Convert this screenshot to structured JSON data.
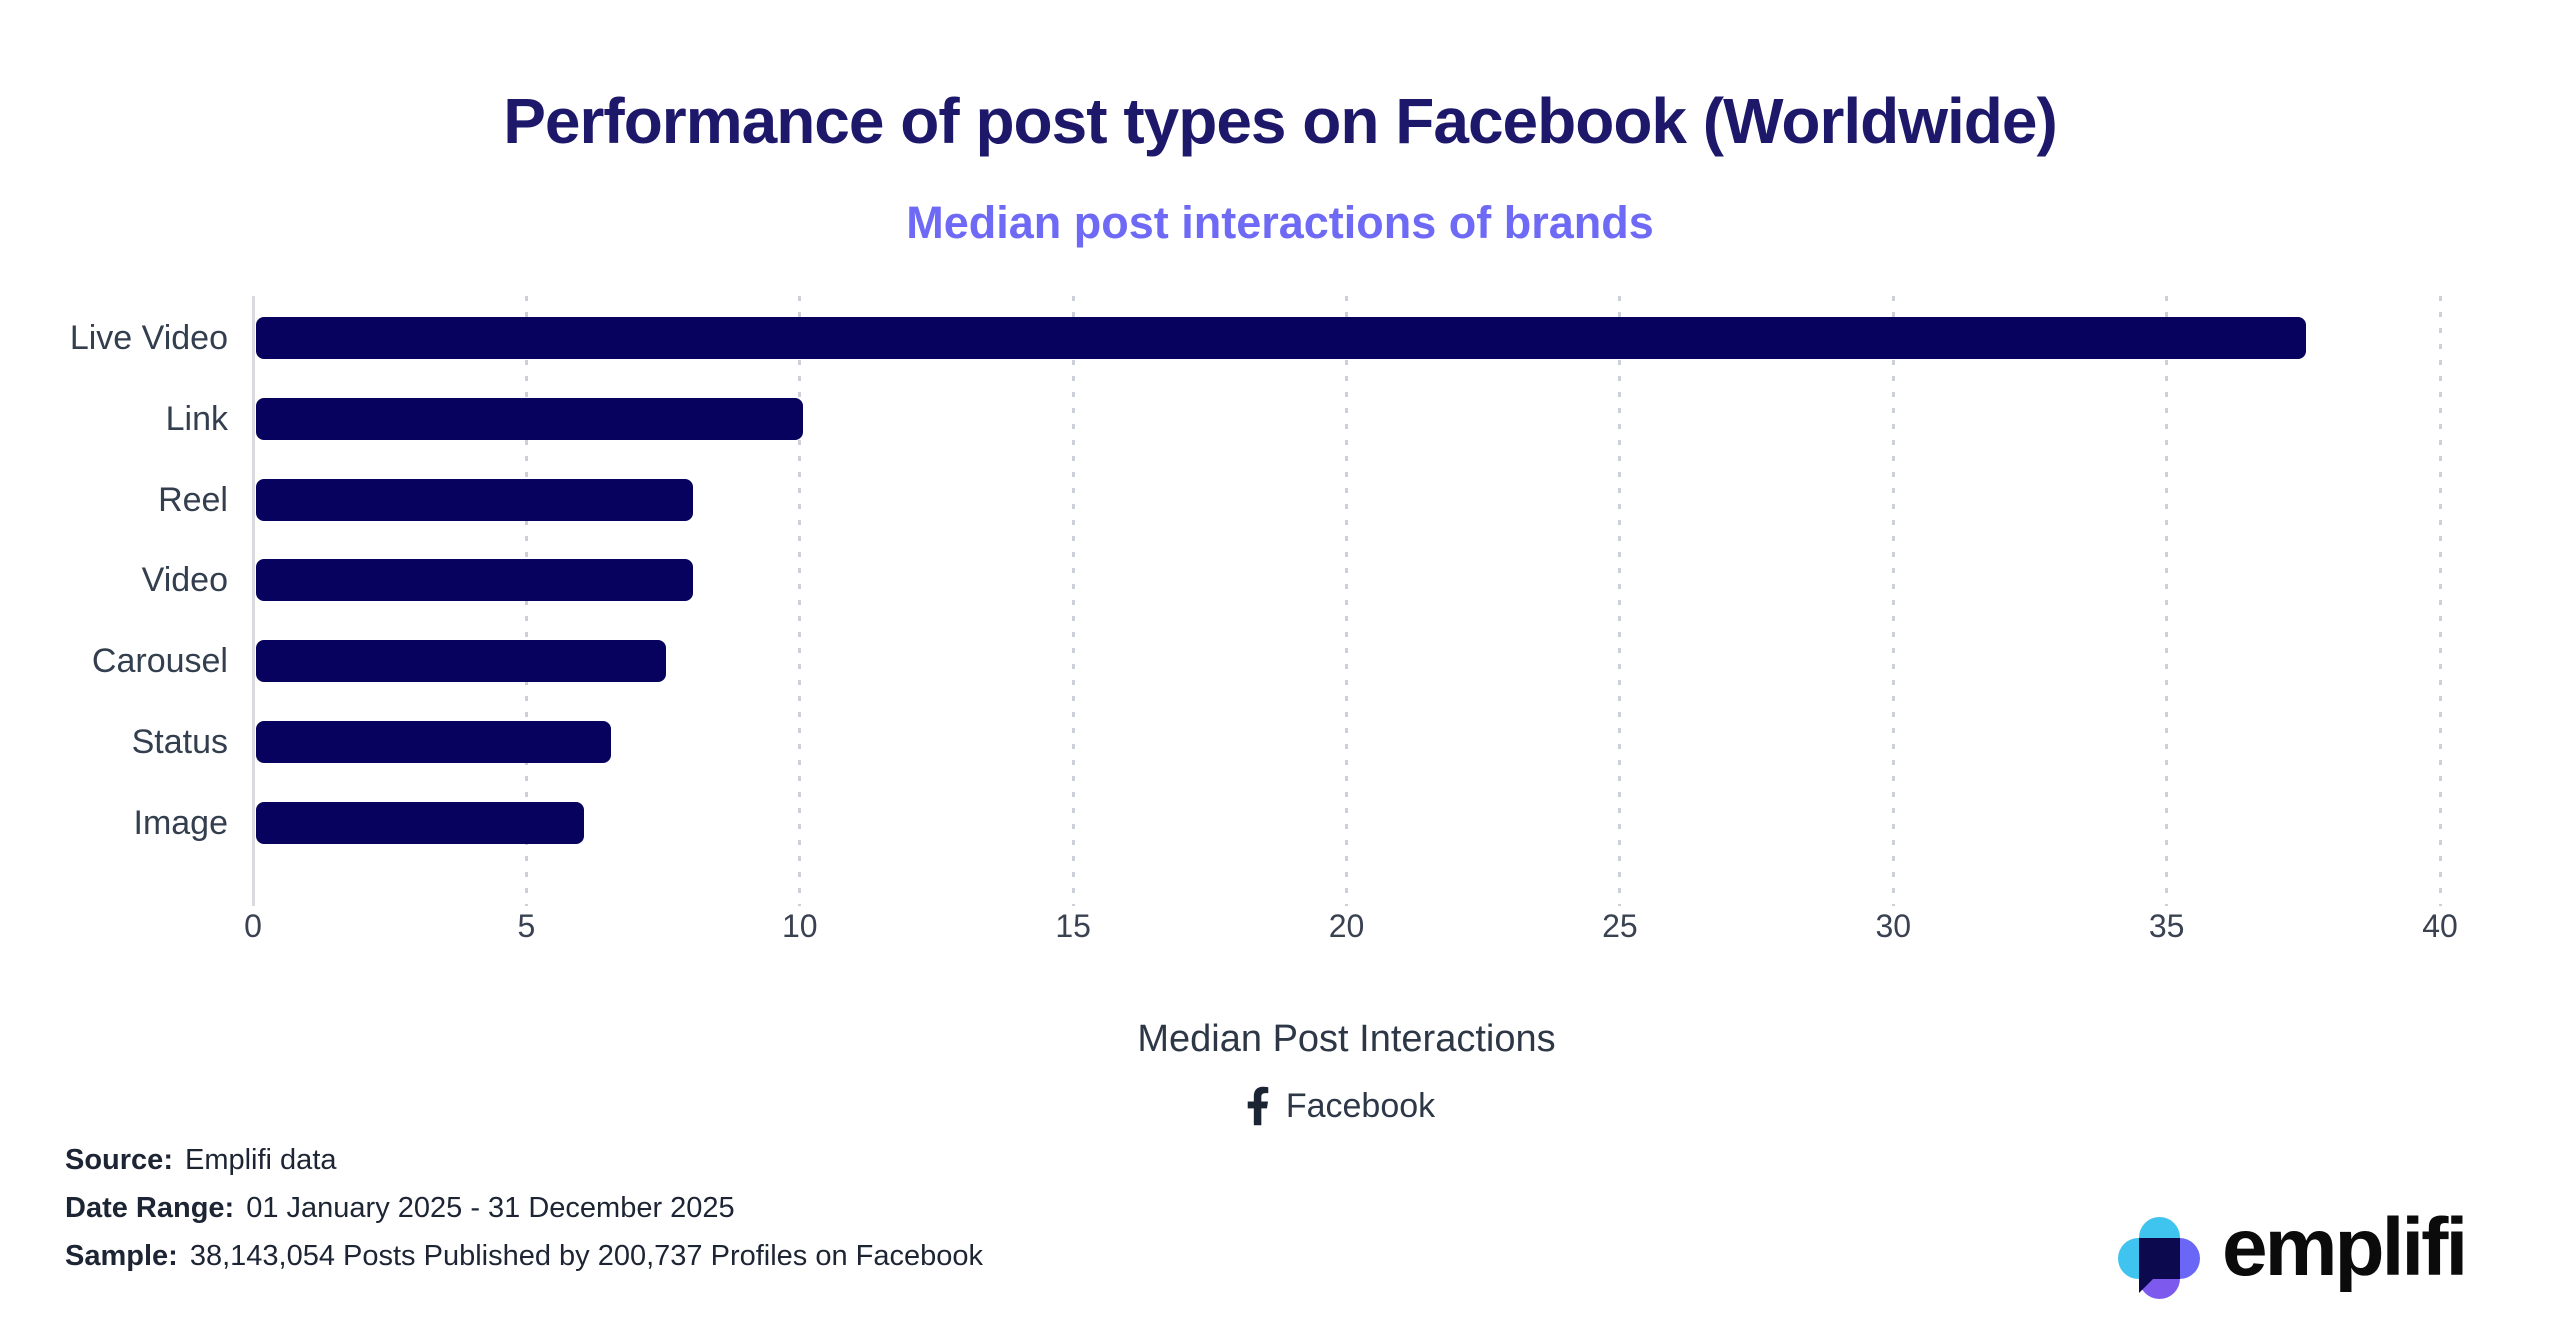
{
  "header": {
    "title": "Performance of post types on Facebook (Worldwide)",
    "subtitle": "Median post interactions of brands"
  },
  "chart_data": {
    "type": "bar",
    "orientation": "horizontal",
    "title": "Performance of post types on Facebook (Worldwide)",
    "subtitle": "Median post interactions of brands",
    "categories": [
      "Live Video",
      "Link",
      "Reel",
      "Video",
      "Carousel",
      "Status",
      "Image"
    ],
    "values": [
      37.5,
      10,
      8,
      8,
      7.5,
      6.5,
      6
    ],
    "xlabel": "Median Post Interactions",
    "ylabel": "",
    "xticks": [
      0,
      5,
      10,
      15,
      20,
      25,
      30,
      35,
      40
    ],
    "xlim": [
      0,
      40
    ],
    "grid": "vertical-dashed",
    "legend": "none",
    "network_label": "Facebook",
    "bar_color": "#06025d"
  },
  "footer": {
    "source_label": "Source:",
    "source_value": "Emplifi data",
    "date_range_label": "Date Range:",
    "date_range_value": "01 January 2025 - 31 December 2025",
    "sample_label": "Sample:",
    "sample_value": "38,143,054 Posts Published by 200,737 Profiles on Facebook"
  },
  "branding": {
    "logo_text": "emplifi"
  },
  "colors": {
    "background": "#ffffff",
    "title": "#1e186b",
    "subtitle": "#6f6af5",
    "bar": "#06025d",
    "axis_text": "#333e4e",
    "gridline": "#ccd0d9",
    "axisline": "#d9dbe1",
    "footer_text": "#1d2534",
    "logo_cyan": "#3fc3ef",
    "logo_periwinkle": "#6a66f6",
    "logo_violet": "#7d59ee",
    "logo_navy": "#0d094e"
  }
}
